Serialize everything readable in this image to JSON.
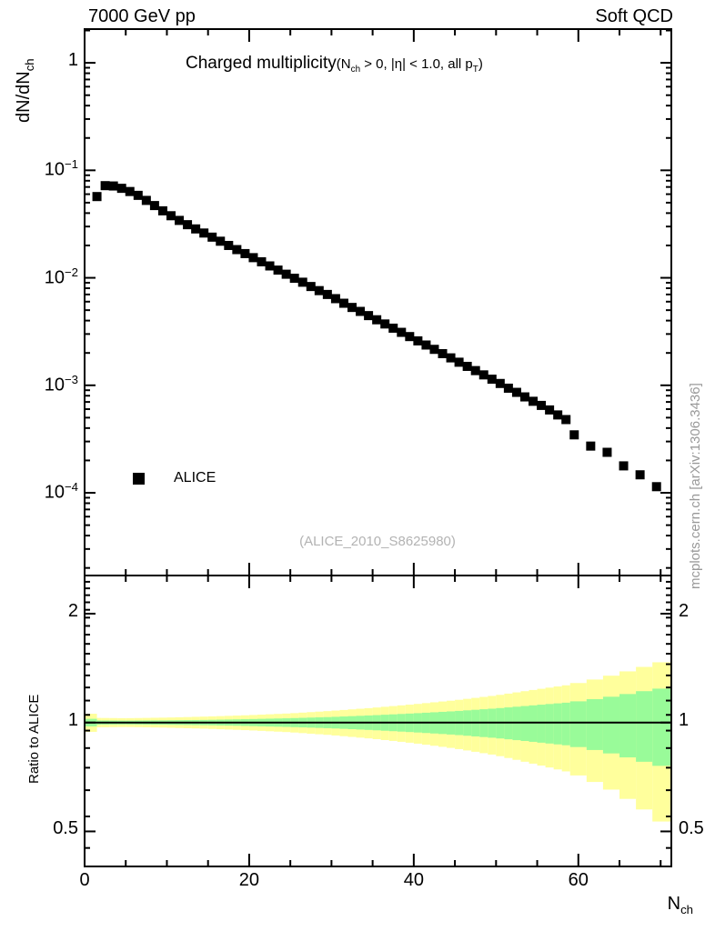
{
  "header": {
    "left": "7000 GeV pp",
    "right": "Soft QCD"
  },
  "main_panel": {
    "title": {
      "main": "Charged multiplicity",
      "paren_open": "(N",
      "paren_sub1": "ch",
      "paren_mid": " > 0, |η| < 1.0, all p",
      "paren_sub2": "T",
      "paren_close": ")"
    },
    "y_axis_label": {
      "base": "dN/dN",
      "sub": "ch"
    },
    "legend": {
      "label": "ALICE",
      "marker": "filled-square",
      "marker_color": "#000000"
    },
    "watermark": "(ALICE_2010_S8625980)"
  },
  "ratio_panel": {
    "y_axis_label": "Ratio to ALICE",
    "reference_value": "1"
  },
  "side_note": "mcplots.cern.ch [arXiv:1306.3436]",
  "x_axis_label": {
    "base": "N",
    "sub": "ch"
  },
  "colors": {
    "marker": "#000000",
    "band_total": "#ffff9c",
    "band_stat": "#99fb99",
    "watermark": "#b3b3b3",
    "side_note": "#999999",
    "frame": "#000000"
  },
  "chart_data": [
    {
      "type": "scatter",
      "title": "Charged multiplicity (N_ch > 0, |eta| < 1.0, all p_T)",
      "xlabel": "N_ch",
      "ylabel": "dN/dN_ch",
      "x_log": false,
      "y_log": true,
      "xlim": [
        0,
        71.3
      ],
      "ylim": [
        1.7e-05,
        2.06
      ],
      "grid": false,
      "x_major_ticks": [
        0,
        20,
        40,
        60
      ],
      "x_minor_step": 5,
      "y_major_ticks": [
        {
          "value": 1,
          "label": "1"
        },
        {
          "value": 0.1,
          "label": "10^-1"
        },
        {
          "value": 0.01,
          "label": "10^-2"
        },
        {
          "value": 0.001,
          "label": "10^-3"
        },
        {
          "value": 0.0001,
          "label": "10^-4"
        }
      ],
      "legend_position": "left-middle",
      "series": [
        {
          "name": "ALICE",
          "marker": "filled-square",
          "color": "#000000",
          "points": [
            [
              1.5,
              0.057
            ],
            [
              2.5,
              0.072
            ],
            [
              3.5,
              0.0715
            ],
            [
              4.5,
              0.068
            ],
            [
              5.5,
              0.0635
            ],
            [
              6.5,
              0.0585
            ],
            [
              7.5,
              0.0525
            ],
            [
              8.5,
              0.047
            ],
            [
              9.5,
              0.042
            ],
            [
              10.5,
              0.0378
            ],
            [
              11.5,
              0.0342
            ],
            [
              12.5,
              0.0312
            ],
            [
              13.5,
              0.0285
            ],
            [
              14.5,
              0.0261
            ],
            [
              15.5,
              0.0239
            ],
            [
              16.5,
              0.0219
            ],
            [
              17.5,
              0.02
            ],
            [
              18.5,
              0.0183
            ],
            [
              19.5,
              0.0168
            ],
            [
              20.5,
              0.0154
            ],
            [
              21.5,
              0.0141
            ],
            [
              22.5,
              0.0129
            ],
            [
              23.5,
              0.0118
            ],
            [
              24.5,
              0.0108
            ],
            [
              25.5,
              0.0099
            ],
            [
              26.5,
              0.0091
            ],
            [
              27.5,
              0.0083
            ],
            [
              28.5,
              0.0076
            ],
            [
              29.5,
              0.007
            ],
            [
              30.5,
              0.0064
            ],
            [
              31.5,
              0.0058
            ],
            [
              32.5,
              0.0053
            ],
            [
              33.5,
              0.00487
            ],
            [
              34.5,
              0.00445
            ],
            [
              35.5,
              0.00407
            ],
            [
              36.5,
              0.00372
            ],
            [
              37.5,
              0.0034
            ],
            [
              38.5,
              0.00311
            ],
            [
              39.5,
              0.00284
            ],
            [
              40.5,
              0.00259
            ],
            [
              41.5,
              0.00237
            ],
            [
              42.5,
              0.00216
            ],
            [
              43.5,
              0.00197
            ],
            [
              44.5,
              0.0018
            ],
            [
              45.5,
              0.00164
            ],
            [
              46.5,
              0.0015
            ],
            [
              47.5,
              0.00137
            ],
            [
              48.5,
              0.00125
            ],
            [
              49.5,
              0.00114
            ],
            [
              50.5,
              0.00104
            ],
            [
              51.5,
              0.00094
            ],
            [
              52.5,
              0.00086
            ],
            [
              53.5,
              0.00078
            ],
            [
              54.5,
              0.00071
            ],
            [
              55.5,
              0.00065
            ],
            [
              56.5,
              0.00059
            ],
            [
              57.5,
              0.00053
            ],
            [
              58.5,
              0.00048
            ],
            [
              59.5,
              0.000346
            ],
            [
              61.5,
              0.000272
            ],
            [
              63.5,
              0.000238
            ],
            [
              65.5,
              0.000178
            ],
            [
              67.5,
              0.000147
            ],
            [
              69.5,
              0.000114
            ]
          ]
        }
      ]
    },
    {
      "type": "band",
      "ylabel": "Ratio to ALICE",
      "y_log": true,
      "xlim": [
        0,
        71.3
      ],
      "ylim": [
        0.4,
        2.55
      ],
      "y_major_ticks": [
        {
          "value": 2,
          "label": "2"
        },
        {
          "value": 1,
          "label": "1"
        },
        {
          "value": 0.5,
          "label": "0.5"
        }
      ],
      "reference_line": 1,
      "bin_edges": [
        0,
        1.5,
        2,
        3,
        4,
        5,
        6,
        7,
        8,
        9,
        10,
        11,
        12,
        13,
        14,
        15,
        16,
        17,
        18,
        19,
        20,
        21,
        22,
        23,
        24,
        25,
        26,
        27,
        28,
        29,
        30,
        31,
        32,
        33,
        34,
        35,
        36,
        37,
        38,
        39,
        40,
        41,
        42,
        43,
        44,
        45,
        46,
        47,
        48,
        49,
        50,
        51,
        52,
        53,
        54,
        55,
        56,
        57,
        58,
        59,
        61,
        63,
        65,
        67,
        69,
        71.3
      ],
      "bands": [
        {
          "name": "data-uncertainty-total",
          "color": "#ffff9c",
          "center": 1,
          "half_width_control_points": [
            [
              0,
              0.085
            ],
            [
              1.5,
              0.03
            ],
            [
              5,
              0.028
            ],
            [
              10,
              0.032
            ],
            [
              15,
              0.039
            ],
            [
              20,
              0.048
            ],
            [
              25,
              0.06
            ],
            [
              30,
              0.077
            ],
            [
              35,
              0.098
            ],
            [
              40,
              0.123
            ],
            [
              45,
              0.152
            ],
            [
              50,
              0.188
            ],
            [
              55,
              0.235
            ],
            [
              59,
              0.272
            ],
            [
              61,
              0.3
            ],
            [
              63,
              0.33
            ],
            [
              65,
              0.365
            ],
            [
              67,
              0.405
            ],
            [
              69,
              0.445
            ],
            [
              71.3,
              0.49
            ]
          ]
        },
        {
          "name": "data-uncertainty-stat",
          "color": "#99fb99",
          "center": 1,
          "half_width_control_points": [
            [
              0,
              0.035
            ],
            [
              1.5,
              0.013
            ],
            [
              5,
              0.012
            ],
            [
              10,
              0.014
            ],
            [
              15,
              0.017
            ],
            [
              20,
              0.022
            ],
            [
              25,
              0.028
            ],
            [
              30,
              0.036
            ],
            [
              35,
              0.047
            ],
            [
              40,
              0.06
            ],
            [
              45,
              0.075
            ],
            [
              50,
              0.094
            ],
            [
              55,
              0.118
            ],
            [
              59,
              0.137
            ],
            [
              61,
              0.152
            ],
            [
              63,
              0.169
            ],
            [
              65,
              0.188
            ],
            [
              67,
              0.21
            ],
            [
              69,
              0.232
            ],
            [
              71.3,
              0.25
            ]
          ]
        }
      ]
    }
  ]
}
